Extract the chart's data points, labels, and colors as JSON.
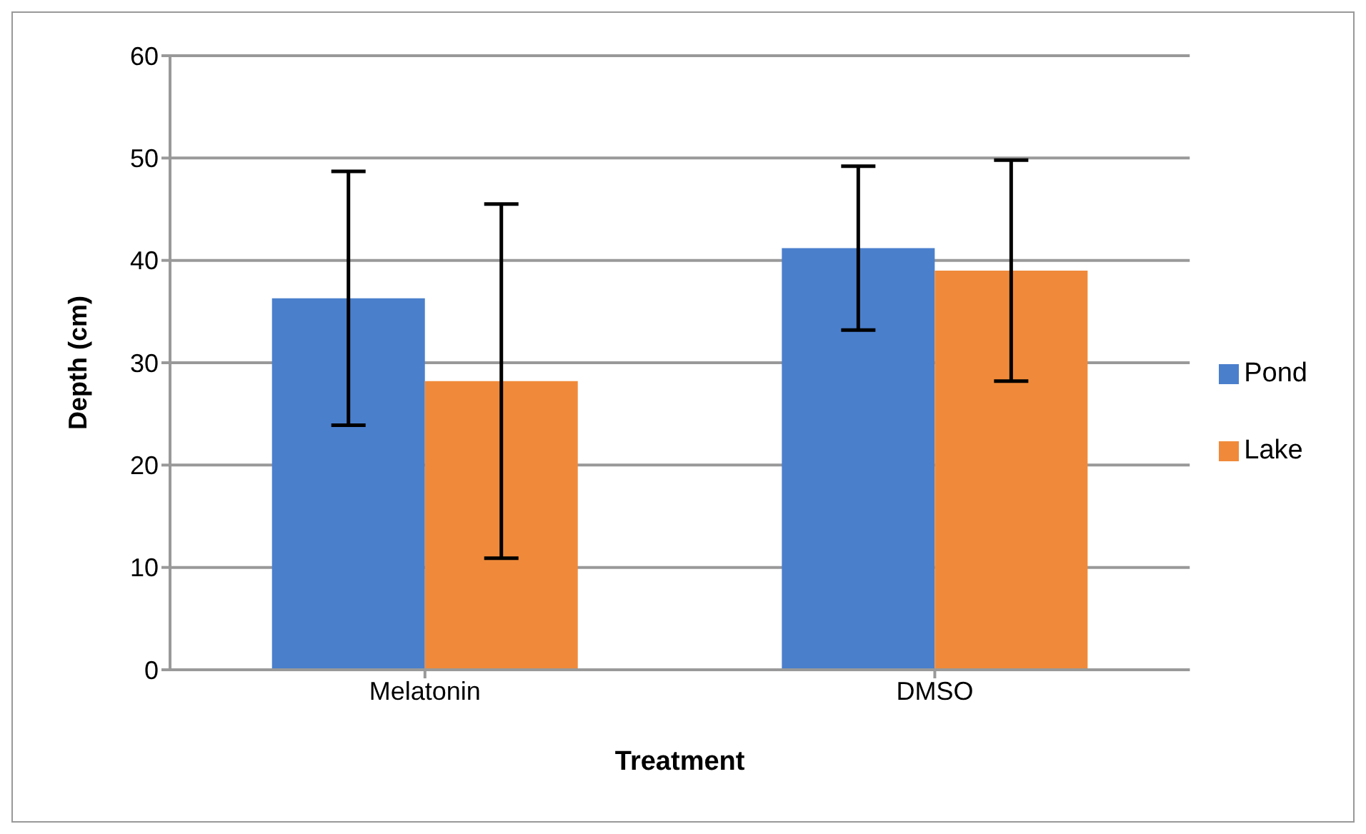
{
  "chart_data": {
    "type": "bar",
    "xlabel": "Treatment",
    "ylabel": "Depth (cm)",
    "categories": [
      "Melatonin",
      "DMSO"
    ],
    "series": [
      {
        "name": "Pond",
        "color": "#4a7fcc",
        "values": [
          36.3,
          41.2
        ],
        "errors": [
          12.4,
          8.0
        ]
      },
      {
        "name": "Lake",
        "color": "#f08a3a",
        "values": [
          28.2,
          39.0
        ],
        "errors": [
          17.3,
          10.8
        ]
      }
    ],
    "ylim": [
      0,
      60
    ],
    "yticks": [
      0,
      10,
      20,
      30,
      40,
      50,
      60
    ],
    "grid": "y",
    "legend": "right"
  }
}
